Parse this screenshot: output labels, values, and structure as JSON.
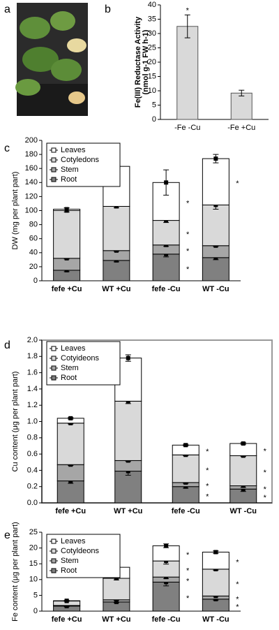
{
  "image_panel": {
    "label": "a"
  },
  "chart_data": [
    {
      "type": "bar",
      "panel": "b",
      "ylabel": [
        "Fe(III) Reductase Activity",
        "(nmol g-1 FW h-1)"
      ],
      "categories": [
        "-Fe -Cu",
        "-Fe +Cu"
      ],
      "values": [
        32.5,
        9.2
      ],
      "errors": [
        4.0,
        1.0
      ],
      "significance": [
        "*",
        null
      ],
      "color": "#d9d9d9",
      "ylim": [
        0,
        40
      ],
      "yticks": [
        0,
        5,
        10,
        15,
        20,
        25,
        30,
        35,
        40
      ]
    },
    {
      "type": "stacked_bar",
      "panel": "c",
      "ylabel": "DW (mg per plant part)",
      "categories": [
        "fefe +Cu",
        "WT +Cu",
        "fefe -Cu",
        "WT -Cu"
      ],
      "series": [
        {
          "name": "Root",
          "color": "#808080",
          "values": [
            15,
            29,
            38,
            33
          ],
          "errors": [
            2,
            2,
            4,
            3
          ],
          "significance": [
            null,
            null,
            "*",
            null
          ]
        },
        {
          "name": "Stem",
          "color": "#a6a6a6",
          "values": [
            17,
            14,
            13,
            17
          ],
          "errors": [
            1,
            1,
            2,
            1
          ],
          "significance": [
            null,
            null,
            "*",
            null
          ]
        },
        {
          "name": "Cotyledons",
          "color": "#d9d9d9",
          "values": [
            68,
            63,
            35,
            58
          ],
          "errors": [
            2,
            2,
            3,
            6
          ],
          "significance": [
            null,
            null,
            "*",
            null
          ]
        },
        {
          "name": "Leaves",
          "color": "#ffffff",
          "values": [
            2,
            57,
            54,
            66
          ],
          "errors": [
            2,
            3,
            18,
            6
          ],
          "significance": [
            null,
            null,
            "*",
            "*"
          ]
        }
      ],
      "ylim": [
        0,
        200
      ],
      "yticks": [
        0,
        20,
        40,
        60,
        80,
        100,
        120,
        140,
        160,
        180,
        200
      ]
    },
    {
      "type": "stacked_bar",
      "panel": "d",
      "ylabel": "Cu content (μg per plant part)",
      "frame": true,
      "categories": [
        "fefe +Cu",
        "WT +Cu",
        "fefe -Cu",
        "WT -Cu"
      ],
      "series": [
        {
          "name": "Root",
          "color": "#808080",
          "values": [
            0.27,
            0.39,
            0.2,
            0.17
          ],
          "errors": [
            0.03,
            0.05,
            0.02,
            0.03
          ],
          "significance": [
            null,
            null,
            "*",
            "*"
          ]
        },
        {
          "name": "Stem",
          "color": "#a6a6a6",
          "values": [
            0.2,
            0.13,
            0.05,
            0.04
          ],
          "errors": [
            0.01,
            0.01,
            0.01,
            0.02
          ],
          "significance": [
            null,
            null,
            "*",
            "*"
          ]
        },
        {
          "name": "Cotyideons",
          "color": "#d9d9d9",
          "values": [
            0.51,
            0.73,
            0.34,
            0.37
          ],
          "errors": [
            0.01,
            0.03,
            0.01,
            0.01
          ],
          "significance": [
            null,
            null,
            "*",
            "*"
          ]
        },
        {
          "name": "Leaves",
          "color": "#ffffff",
          "values": [
            0.06,
            0.53,
            0.12,
            0.15
          ],
          "errors": [
            0.01,
            0.04,
            0.01,
            0.01
          ],
          "significance": [
            null,
            null,
            "*",
            "*"
          ]
        }
      ],
      "ylim": [
        0,
        2.0
      ],
      "yticks": [
        {
          "value": 0,
          "label": "0.0"
        },
        0.2,
        0.4,
        0.6,
        0.8,
        {
          "value": 1,
          "label": "1.0"
        },
        1.2,
        1.4,
        1.6,
        1.8,
        {
          "value": 2,
          "label": "2.0"
        }
      ]
    },
    {
      "type": "stacked_bar",
      "panel": "e",
      "ylabel": "Fe content (μg per plant part)",
      "categories": [
        "fefe +Cu",
        "WT +Cu",
        "fefe -Cu",
        "WT -Cu"
      ],
      "series": [
        {
          "name": "Root",
          "color": "#808080",
          "values": [
            1.6,
            2.9,
            9.2,
            3.8
          ],
          "errors": [
            0.2,
            0.2,
            1.2,
            0.3
          ],
          "significance": [
            null,
            null,
            "*",
            "*"
          ]
        },
        {
          "name": "Stem",
          "color": "#a6a6a6",
          "values": [
            0.2,
            0.7,
            1.6,
            1.0
          ],
          "errors": [
            0.1,
            0.2,
            0.5,
            0.1
          ],
          "significance": [
            null,
            null,
            "*",
            "*"
          ]
        },
        {
          "name": "Cotyldeons",
          "color": "#d9d9d9",
          "values": [
            1.4,
            6.8,
            5.1,
            8.5
          ],
          "errors": [
            0.1,
            0.5,
            1.0,
            0.3
          ],
          "significance": [
            null,
            null,
            "*",
            "*"
          ]
        },
        {
          "name": "Leaves",
          "color": "#ffffff",
          "values": [
            0.1,
            3.5,
            4.8,
            5.4
          ],
          "errors": [
            0.1,
            0.2,
            0.6,
            0.4
          ],
          "significance": [
            null,
            null,
            "*",
            "*"
          ]
        }
      ],
      "ylim": [
        0,
        25
      ],
      "yticks": [
        0,
        5,
        10,
        15,
        20,
        25
      ]
    }
  ]
}
